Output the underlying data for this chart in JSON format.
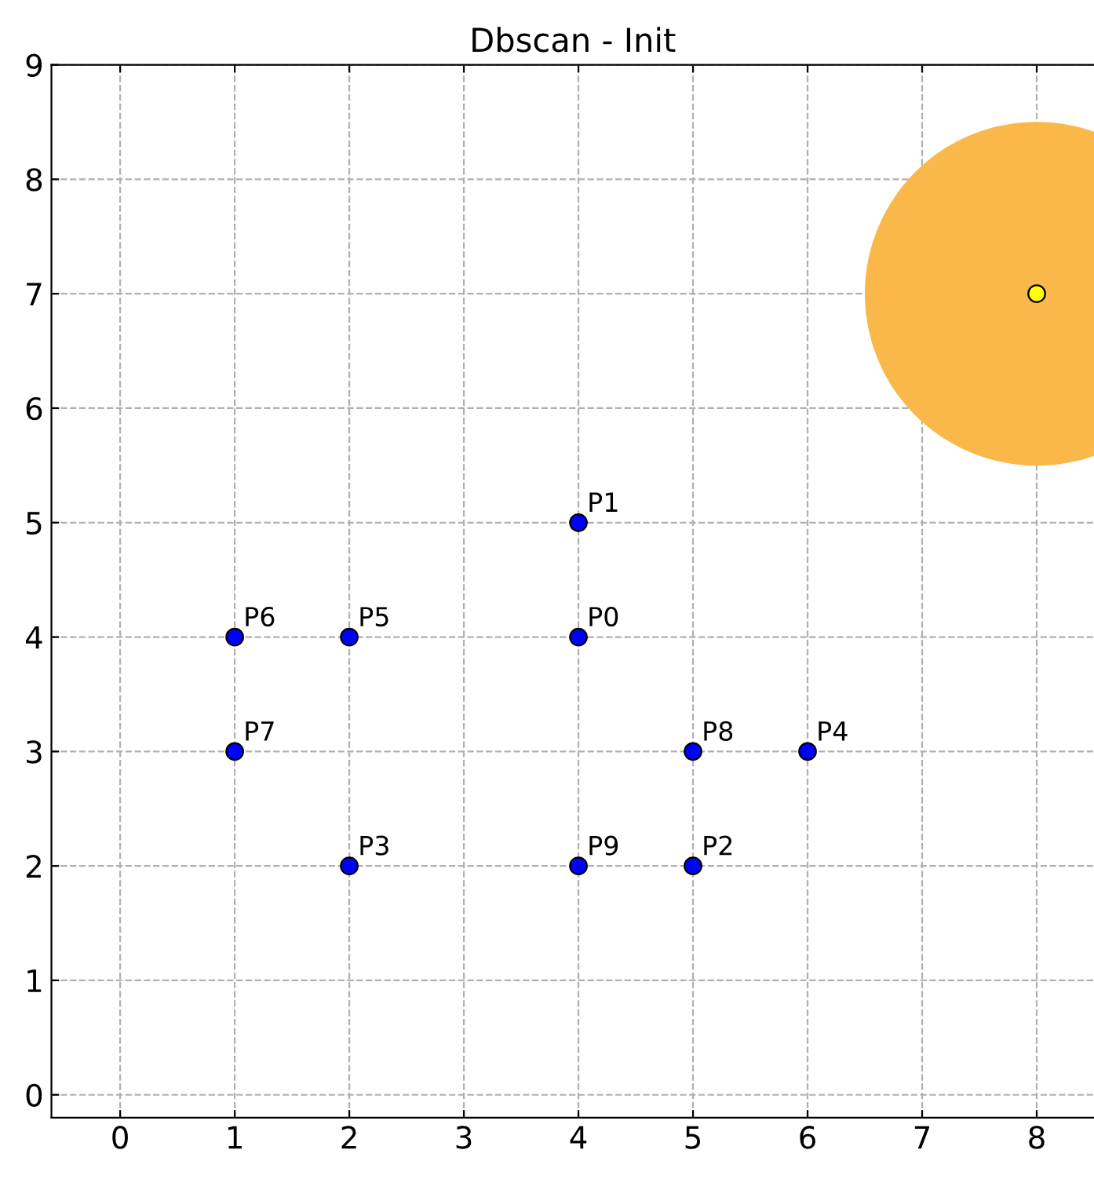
{
  "chart_data": {
    "type": "scatter",
    "title": "Dbscan - Init",
    "series": [
      {
        "type": "bubble",
        "color": "#fbb84a",
        "x": [
          8
        ],
        "values": [
          7
        ],
        "sizes": [
          1
        ]
      },
      {
        "color": "#0000ff",
        "x": [
          4,
          4,
          5,
          2,
          6,
          2,
          1,
          1,
          5,
          4
        ],
        "values": [
          4,
          5,
          2,
          2,
          3,
          4,
          4,
          3,
          3,
          2
        ],
        "value_labels": [
          "P0",
          "P1",
          "P2",
          "P3",
          "P4",
          "P5",
          "P6",
          "P7",
          "P8",
          "P9"
        ]
      },
      {
        "color": "#ffff00",
        "x": [
          8
        ],
        "values": [
          7
        ]
      }
    ],
    "xlim": [
      -0.6,
      8.5
    ],
    "ylim": [
      -0.2,
      9
    ],
    "xticks": [
      0,
      1,
      2,
      3,
      4,
      5,
      6,
      7,
      8
    ],
    "yticks": [
      0,
      1,
      2,
      3,
      4,
      5,
      6,
      7,
      8,
      9
    ],
    "grid": true,
    "marker": "circle"
  }
}
